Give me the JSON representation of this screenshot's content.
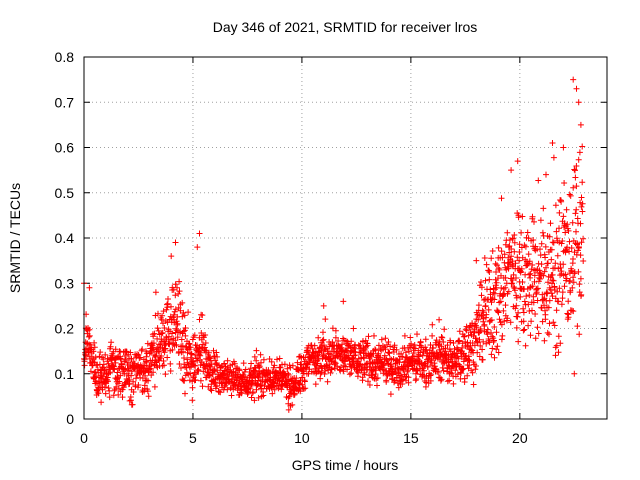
{
  "chart_data": {
    "type": "scatter",
    "title": "Day 346 of 2021, SRMTID for receiver lros",
    "xlabel": "GPS time / hours",
    "ylabel": "SRMTID / TECUs",
    "xlim": [
      0,
      24
    ],
    "ylim": [
      0,
      0.8
    ],
    "xticks": [
      0,
      5,
      10,
      15,
      20
    ],
    "xtick_labels": [
      "0",
      "5",
      "10",
      "15",
      "20"
    ],
    "yticks": [
      0,
      0.1,
      0.2,
      0.3,
      0.4,
      0.5,
      0.6,
      0.7,
      0.8
    ],
    "ytick_labels": [
      "0",
      "0.1",
      "0.2",
      "0.3",
      "0.4",
      "0.5",
      "0.6",
      "0.7",
      "0.8"
    ],
    "grid": true,
    "marker": "+",
    "marker_color": "#ff0000",
    "sample_step_hours": 0.02,
    "trend_knots": [
      [
        0.0,
        0.12
      ],
      [
        0.1,
        0.19
      ],
      [
        0.3,
        0.14
      ],
      [
        0.6,
        0.09
      ],
      [
        1.0,
        0.1
      ],
      [
        1.5,
        0.11
      ],
      [
        2.0,
        0.1
      ],
      [
        2.5,
        0.1
      ],
      [
        3.0,
        0.12
      ],
      [
        3.5,
        0.17
      ],
      [
        4.0,
        0.2
      ],
      [
        4.3,
        0.22
      ],
      [
        4.6,
        0.14
      ],
      [
        5.0,
        0.12
      ],
      [
        5.3,
        0.17
      ],
      [
        5.6,
        0.12
      ],
      [
        6.0,
        0.1
      ],
      [
        6.5,
        0.09
      ],
      [
        7.0,
        0.09
      ],
      [
        7.5,
        0.08
      ],
      [
        8.0,
        0.09
      ],
      [
        8.5,
        0.09
      ],
      [
        9.0,
        0.09
      ],
      [
        9.5,
        0.07
      ],
      [
        10.0,
        0.1
      ],
      [
        10.5,
        0.14
      ],
      [
        11.0,
        0.14
      ],
      [
        11.5,
        0.14
      ],
      [
        12.0,
        0.14
      ],
      [
        12.5,
        0.13
      ],
      [
        13.0,
        0.13
      ],
      [
        13.5,
        0.12
      ],
      [
        14.0,
        0.12
      ],
      [
        14.5,
        0.12
      ],
      [
        15.0,
        0.13
      ],
      [
        15.5,
        0.13
      ],
      [
        16.0,
        0.13
      ],
      [
        16.5,
        0.14
      ],
      [
        17.0,
        0.12
      ],
      [
        17.5,
        0.15
      ],
      [
        18.0,
        0.18
      ],
      [
        18.5,
        0.23
      ],
      [
        19.0,
        0.27
      ],
      [
        19.5,
        0.33
      ],
      [
        20.0,
        0.32
      ],
      [
        20.5,
        0.3
      ],
      [
        21.0,
        0.31
      ],
      [
        21.5,
        0.32
      ],
      [
        22.0,
        0.33
      ],
      [
        22.5,
        0.38
      ],
      [
        22.9,
        0.42
      ]
    ],
    "spread_knots": [
      [
        0.0,
        0.04
      ],
      [
        3.0,
        0.05
      ],
      [
        4.5,
        0.08
      ],
      [
        6.0,
        0.03
      ],
      [
        9.5,
        0.03
      ],
      [
        10.0,
        0.04
      ],
      [
        17.0,
        0.04
      ],
      [
        18.0,
        0.06
      ],
      [
        19.0,
        0.12
      ],
      [
        21.0,
        0.12
      ],
      [
        22.9,
        0.16
      ]
    ],
    "peaks": [
      {
        "x": 0.0,
        "y": 0.3
      },
      {
        "x": 0.25,
        "y": 0.29
      },
      {
        "x": 3.3,
        "y": 0.28
      },
      {
        "x": 4.0,
        "y": 0.36
      },
      {
        "x": 4.2,
        "y": 0.39
      },
      {
        "x": 5.3,
        "y": 0.41
      },
      {
        "x": 5.2,
        "y": 0.38
      },
      {
        "x": 9.4,
        "y": 0.02
      },
      {
        "x": 11.0,
        "y": 0.25
      },
      {
        "x": 11.9,
        "y": 0.26
      },
      {
        "x": 18.0,
        "y": 0.35
      },
      {
        "x": 19.6,
        "y": 0.55
      },
      {
        "x": 19.9,
        "y": 0.57
      },
      {
        "x": 21.2,
        "y": 0.54
      },
      {
        "x": 21.5,
        "y": 0.61
      },
      {
        "x": 22.0,
        "y": 0.6
      },
      {
        "x": 22.45,
        "y": 0.75
      },
      {
        "x": 22.6,
        "y": 0.73
      },
      {
        "x": 22.7,
        "y": 0.7
      },
      {
        "x": 22.8,
        "y": 0.65
      },
      {
        "x": 22.5,
        "y": 0.1
      }
    ]
  }
}
